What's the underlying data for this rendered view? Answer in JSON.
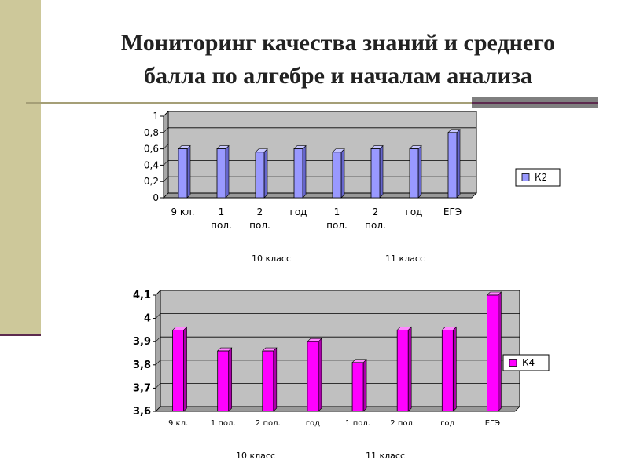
{
  "title": {
    "line1": "Мониторинг качества знаний и среднего",
    "line2": "балла по алгебре и началам анализа"
  },
  "colors": {
    "side_band": "#cdc89a",
    "accent_dark": "#5c2a4e",
    "plot_area": "#c0c0c0",
    "series1_bar": "#9999ff",
    "series2_bar": "#ff00ff"
  },
  "chart_data": [
    {
      "type": "bar",
      "categories": [
        [
          "9 кл."
        ],
        [
          "1",
          "пол."
        ],
        [
          "2",
          "пол."
        ],
        [
          "год"
        ],
        [
          "1",
          "пол."
        ],
        [
          "2",
          "пол."
        ],
        [
          "год"
        ],
        [
          "ЕГЭ"
        ]
      ],
      "groups": [
        {
          "label": "10 класс"
        },
        {
          "label": "11 класс"
        }
      ],
      "series": [
        {
          "name": "К2",
          "values": [
            0.6,
            0.6,
            0.56,
            0.6,
            0.56,
            0.6,
            0.6,
            0.8
          ]
        }
      ],
      "ylim": [
        0,
        1
      ],
      "yticks": [
        "0",
        "0,2",
        "0,4",
        "0,6",
        "0,8",
        "1"
      ],
      "grid": true,
      "legend": "right"
    },
    {
      "type": "bar",
      "categories": [
        [
          "9 кл."
        ],
        [
          "1 пол."
        ],
        [
          "2 пол."
        ],
        [
          "год"
        ],
        [
          "1 пол."
        ],
        [
          "2 пол."
        ],
        [
          "год"
        ],
        [
          "ЕГЭ"
        ]
      ],
      "groups": [
        {
          "label": "10 класс"
        },
        {
          "label": "11 класс"
        }
      ],
      "series": [
        {
          "name": "К4",
          "values": [
            3.95,
            3.86,
            3.86,
            3.9,
            3.81,
            3.95,
            3.95,
            4.1
          ]
        }
      ],
      "ylim": [
        3.6,
        4.1
      ],
      "yticks": [
        "3,6",
        "3,7",
        "3,8",
        "3,9",
        "4",
        "4,1"
      ],
      "grid": true,
      "legend": "right"
    }
  ]
}
